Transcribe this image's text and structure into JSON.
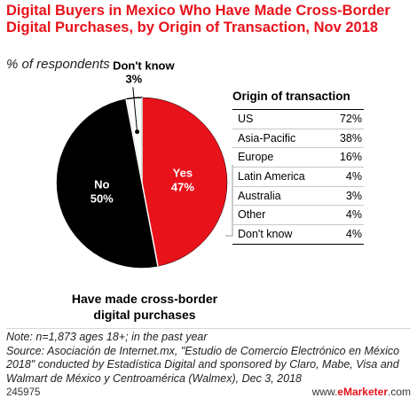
{
  "header": {
    "title": "Digital Buyers in Mexico Who Have Made Cross-Border Digital Purchases, by Origin of Transaction, Nov 2018",
    "subtitle": "% of respondents"
  },
  "chart_data": [
    {
      "type": "pie",
      "series": [
        {
          "label": "Yes",
          "value": 47,
          "value_label": "47%",
          "color": "#e8121b"
        },
        {
          "label": "No",
          "value": 50,
          "value_label": "50%",
          "color": "#000000"
        },
        {
          "label": "Don't know",
          "value": 3,
          "value_label": "3%",
          "color": "#ffffff"
        }
      ],
      "caption": "Have made cross-border digital purchases"
    },
    {
      "type": "table",
      "header": "Origin of transaction",
      "rows": [
        {
          "label": "US",
          "value": 72,
          "value_label": "72%"
        },
        {
          "label": "Asia-Pacific",
          "value": 38,
          "value_label": "38%"
        },
        {
          "label": "Europe",
          "value": 16,
          "value_label": "16%"
        },
        {
          "label": "Latin America",
          "value": 4,
          "value_label": "4%"
        },
        {
          "label": "Australia",
          "value": 3,
          "value_label": "3%"
        },
        {
          "label": "Other",
          "value": 4,
          "value_label": "4%"
        },
        {
          "label": "Don't know",
          "value": 4,
          "value_label": "4%"
        }
      ]
    }
  ],
  "notes": {
    "note": "Note: n=1,873 ages 18+; in the past year",
    "source": "Source: Asociación de Internet.mx, \"Estudio de Comercio Electrónico en México 2018\" conducted by Estadística Digital and sponsored by Claro, Mabe, Visa and Walmart de México y Centroamérica (Walmex), Dec 3, 2018"
  },
  "footer": {
    "chart_id": "245975",
    "brand_prefix": "www.",
    "brand_name": "eMarketer",
    "brand_suffix": ".com"
  }
}
